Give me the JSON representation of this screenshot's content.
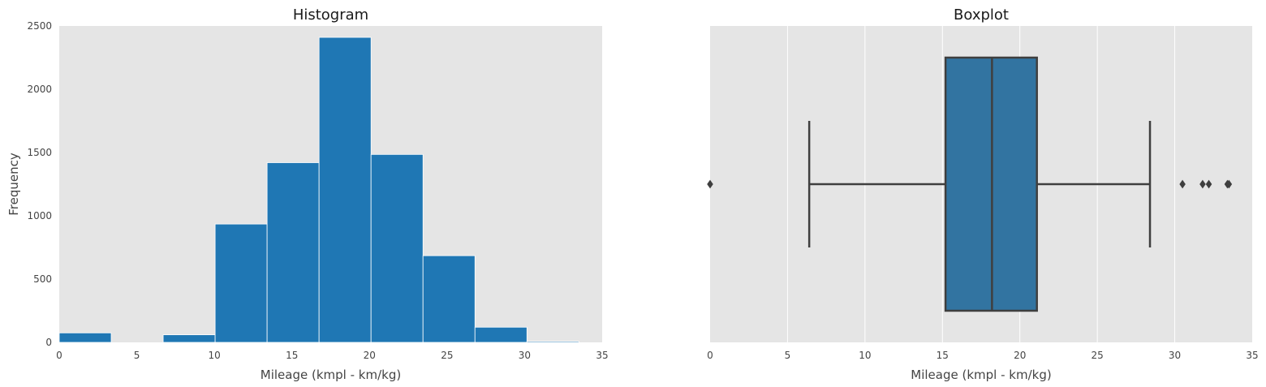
{
  "chart_data": [
    {
      "type": "bar",
      "title": "Histogram",
      "xlabel": "Mileage (kmpl - km/kg)",
      "ylabel": "Frequency",
      "xlim": [
        0,
        35
      ],
      "ylim": [
        0,
        2500
      ],
      "xticks": [
        0,
        5,
        10,
        15,
        20,
        25,
        30,
        35
      ],
      "yticks": [
        0,
        500,
        1000,
        1500,
        2000,
        2500
      ],
      "grid": false,
      "bar_color": "#1f77b4",
      "plot_background": "#e5e5e5",
      "bins": [
        {
          "start": 0.0,
          "end": 3.35,
          "value": 75
        },
        {
          "start": 3.35,
          "end": 6.7,
          "value": 0
        },
        {
          "start": 6.7,
          "end": 10.05,
          "value": 60
        },
        {
          "start": 10.05,
          "end": 13.4,
          "value": 935
        },
        {
          "start": 13.4,
          "end": 16.75,
          "value": 1420
        },
        {
          "start": 16.75,
          "end": 20.1,
          "value": 2410
        },
        {
          "start": 20.1,
          "end": 23.45,
          "value": 1485
        },
        {
          "start": 23.45,
          "end": 26.8,
          "value": 685
        },
        {
          "start": 26.8,
          "end": 30.15,
          "value": 120
        },
        {
          "start": 30.15,
          "end": 33.5,
          "value": 8
        }
      ]
    },
    {
      "type": "boxplot",
      "title": "Boxplot",
      "xlabel": "Mileage (kmpl - km/kg)",
      "xlim": [
        0,
        35
      ],
      "xticks": [
        0,
        5,
        10,
        15,
        20,
        25,
        30,
        35
      ],
      "grid": true,
      "box_color": "#3274a1",
      "line_color": "#3f3f3f",
      "plot_background": "#e5e5e5",
      "box": {
        "whisker_low": 6.4,
        "q1": 15.2,
        "median": 18.2,
        "q3": 21.1,
        "whisker_high": 28.4
      },
      "outliers": [
        0.0,
        30.5,
        31.8,
        32.2,
        33.4,
        33.5
      ]
    }
  ]
}
